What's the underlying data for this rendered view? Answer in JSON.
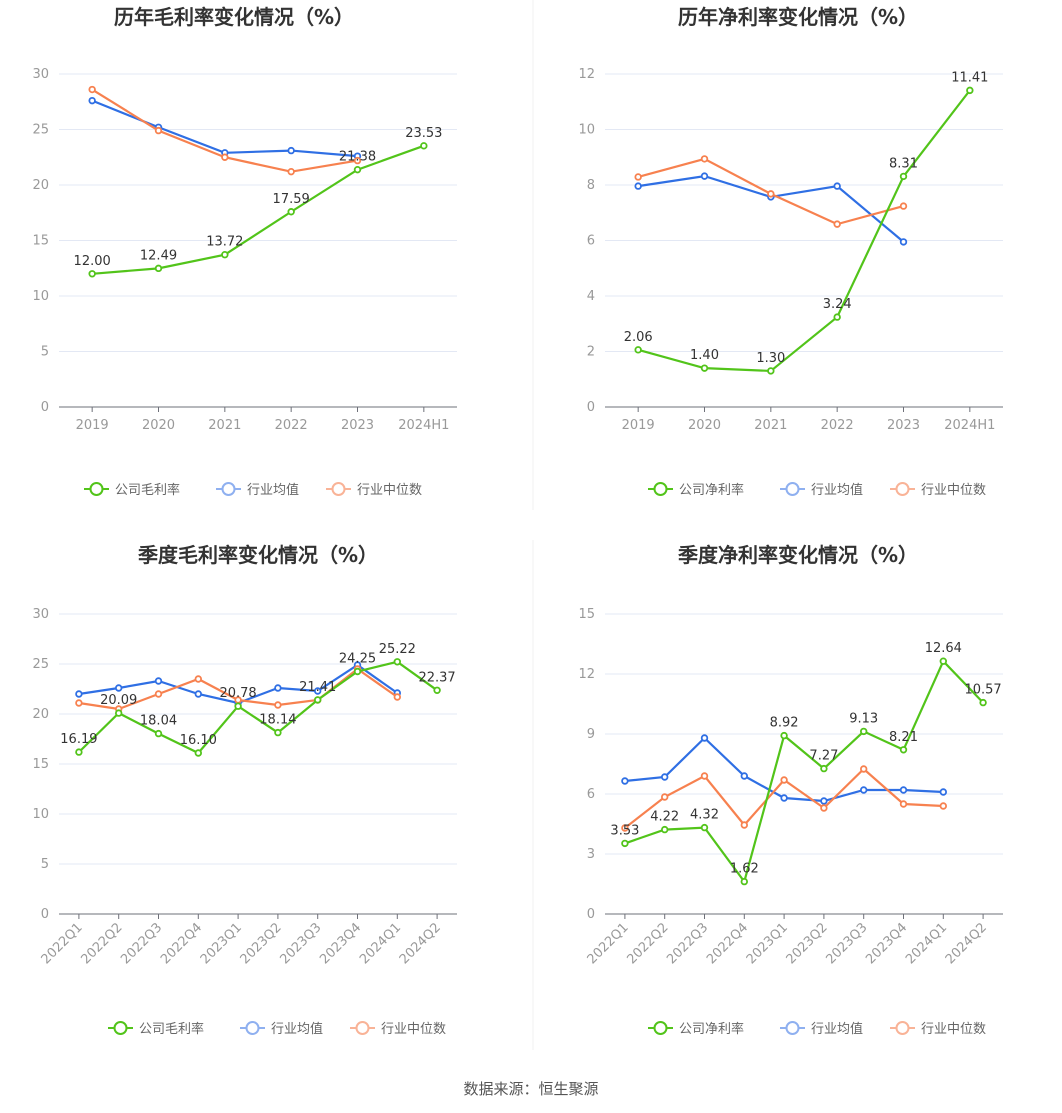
{
  "source": "数据来源：恒生聚源",
  "colors": {
    "company": "#52c41a",
    "industry_avg": "#2f6fe4",
    "industry_median": "#f7814f",
    "grid": "#e3e8f4",
    "axis": "#6e7079"
  },
  "chart_data": [
    {
      "type": "line",
      "title": "历年毛利率变化情况（%）",
      "categories": [
        "2019",
        "2020",
        "2021",
        "2022",
        "2023",
        "2024H1"
      ],
      "ylim": [
        0,
        30
      ],
      "yticks": [
        0,
        5,
        10,
        15,
        20,
        25,
        30
      ],
      "grid": true,
      "legend": "bottom",
      "series": [
        {
          "name": "公司毛利率",
          "values": [
            12.0,
            12.49,
            13.72,
            17.59,
            21.38,
            23.53
          ],
          "labels": true
        },
        {
          "name": "行业均值",
          "values": [
            27.6,
            25.2,
            22.9,
            23.1,
            22.6,
            null
          ]
        },
        {
          "name": "行业中位数",
          "values": [
            28.6,
            24.9,
            22.5,
            21.2,
            22.2,
            null
          ]
        }
      ]
    },
    {
      "type": "line",
      "title": "历年净利率变化情况（%）",
      "categories": [
        "2019",
        "2020",
        "2021",
        "2022",
        "2023",
        "2024H1"
      ],
      "ylim": [
        0,
        12
      ],
      "yticks": [
        0,
        2,
        4,
        6,
        8,
        10,
        12
      ],
      "grid": true,
      "legend": "bottom",
      "series": [
        {
          "name": "公司净利率",
          "values": [
            2.06,
            1.4,
            1.3,
            3.24,
            8.31,
            11.41
          ],
          "labels": true
        },
        {
          "name": "行业均值",
          "values": [
            7.96,
            8.32,
            7.57,
            7.96,
            5.95,
            null
          ]
        },
        {
          "name": "行业中位数",
          "values": [
            8.29,
            8.94,
            7.68,
            6.59,
            7.24,
            null
          ]
        }
      ]
    },
    {
      "type": "line",
      "title": "季度毛利率变化情况（%）",
      "categories": [
        "2022Q1",
        "2022Q2",
        "2022Q3",
        "2022Q4",
        "2023Q1",
        "2023Q2",
        "2023Q3",
        "2023Q4",
        "2024Q1",
        "2024Q2"
      ],
      "ylim": [
        0,
        30
      ],
      "yticks": [
        0,
        5,
        10,
        15,
        20,
        25,
        30
      ],
      "grid": true,
      "legend": "bottom",
      "series": [
        {
          "name": "公司毛利率",
          "values": [
            16.19,
            20.09,
            18.04,
            16.1,
            20.78,
            18.14,
            21.41,
            24.25,
            25.22,
            22.37
          ],
          "labels": true
        },
        {
          "name": "行业均值",
          "values": [
            22.0,
            22.6,
            23.3,
            22.0,
            21.1,
            22.6,
            22.3,
            24.9,
            22.1,
            null
          ]
        },
        {
          "name": "行业中位数",
          "values": [
            21.1,
            20.5,
            22.0,
            23.5,
            21.4,
            20.9,
            21.4,
            24.5,
            21.7,
            null
          ]
        }
      ]
    },
    {
      "type": "line",
      "title": "季度净利率变化情况（%）",
      "categories": [
        "2022Q1",
        "2022Q2",
        "2022Q3",
        "2022Q4",
        "2023Q1",
        "2023Q2",
        "2023Q3",
        "2023Q4",
        "2024Q1",
        "2024Q2"
      ],
      "ylim": [
        0,
        15
      ],
      "yticks": [
        0,
        3,
        6,
        9,
        12,
        15
      ],
      "grid": true,
      "legend": "bottom",
      "series": [
        {
          "name": "公司净利率",
          "values": [
            3.53,
            4.22,
            4.32,
            1.62,
            8.92,
            7.27,
            9.13,
            8.21,
            12.64,
            10.57
          ],
          "labels": true
        },
        {
          "name": "行业均值",
          "values": [
            6.65,
            6.85,
            8.8,
            6.9,
            5.8,
            5.65,
            6.2,
            6.2,
            6.1,
            null
          ]
        },
        {
          "name": "行业中位数",
          "values": [
            4.3,
            5.85,
            6.9,
            4.45,
            6.7,
            5.3,
            7.25,
            5.5,
            5.4,
            null
          ]
        }
      ]
    }
  ]
}
